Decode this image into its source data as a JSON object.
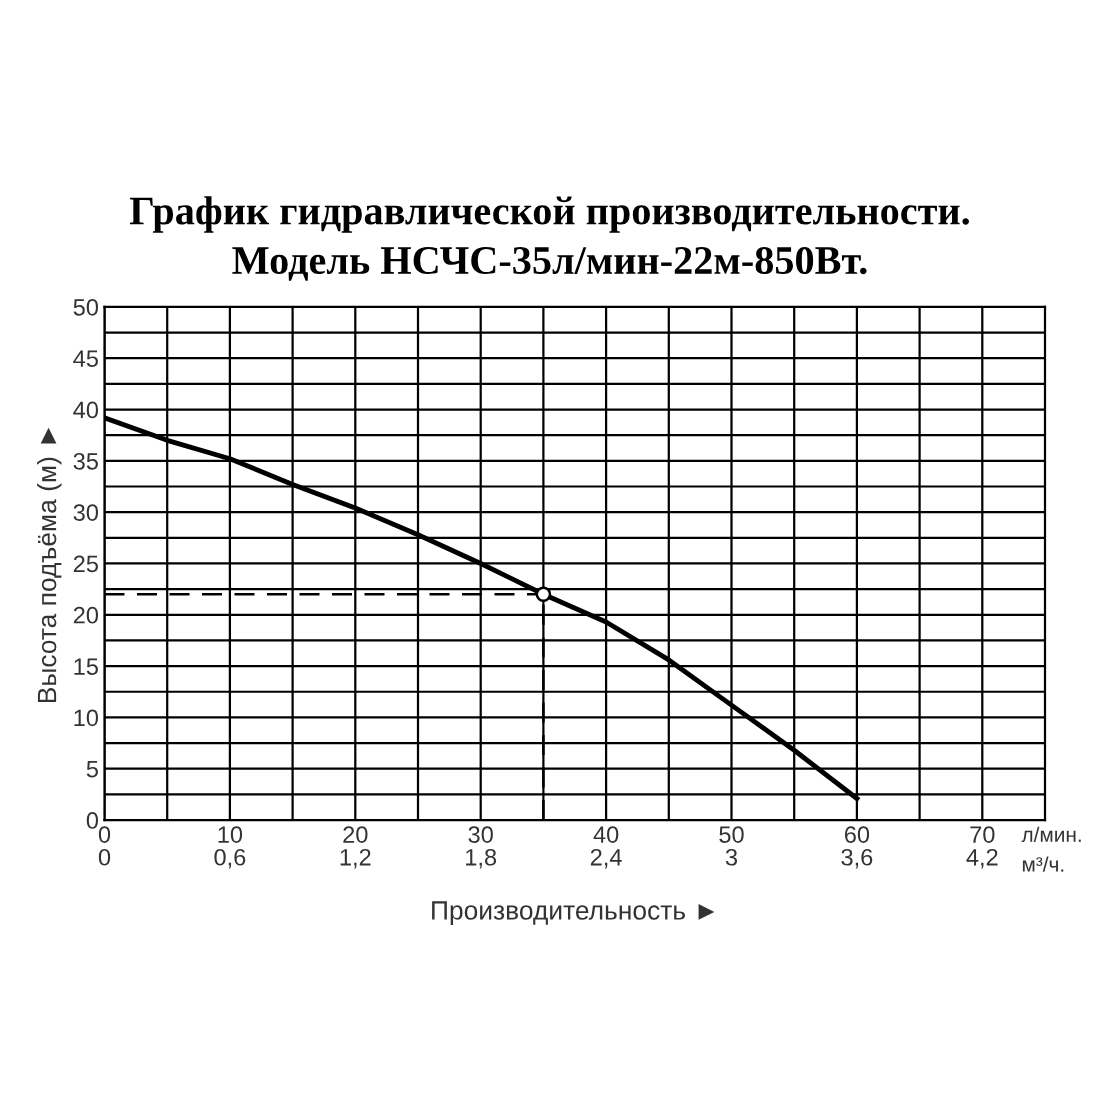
{
  "chart_data": {
    "type": "line",
    "title": "График гидравлической производительности.",
    "subtitle": "Модель НСЧС-35л/мин-22м-850Вт.",
    "xlabel": "Производительность ►",
    "ylabel": "Высота подъёма (м) ►",
    "x": [
      0,
      5,
      10,
      15,
      20,
      25,
      30,
      35,
      40,
      45,
      50,
      55,
      60
    ],
    "series": [
      {
        "color": "#000000",
        "values": [
          39.2,
          37.0,
          35.2,
          32.7,
          30.4,
          27.8,
          25.0,
          22.0,
          19.3,
          15.6,
          11.2,
          6.8,
          2.1
        ]
      },
      {
        "type": "scatter",
        "x": [
          35
        ],
        "color": "#000000",
        "values": [
          22
        ],
        "marker": "circle"
      }
    ],
    "xlim": [
      0,
      75
    ],
    "ylim": [
      0,
      50
    ],
    "xticks": [
      0,
      {
        "value": 5,
        "label": null
      },
      10,
      {
        "value": 15,
        "label": null
      },
      20,
      {
        "value": 25,
        "label": null
      },
      30,
      {
        "value": 35,
        "label": null
      },
      40,
      {
        "value": 45,
        "label": null
      },
      50,
      {
        "value": 55,
        "label": null
      },
      60,
      {
        "value": 65,
        "label": null
      },
      70
    ],
    "yticks": [
      0,
      {
        "value": 2.5,
        "label": null
      },
      5,
      {
        "value": 7.5,
        "label": null
      },
      10,
      {
        "value": 12.5,
        "label": null
      },
      15,
      {
        "value": 17.5,
        "label": null
      },
      20,
      {
        "value": 22.5,
        "label": null
      },
      25,
      {
        "value": 27.5,
        "label": null
      },
      30,
      {
        "value": 32.5,
        "label": null
      },
      35,
      {
        "value": 37.5,
        "label": null
      },
      40,
      {
        "value": 42.5,
        "label": null
      },
      45,
      {
        "value": 47.5,
        "label": null
      },
      50
    ],
    "x2lim": [
      0,
      4.5
    ],
    "x2ticks": [
      0,
      {
        "value": 0.6,
        "label": "0,6"
      },
      {
        "value": 1.2,
        "label": "1,2"
      },
      {
        "value": 1.8,
        "label": "1,8"
      },
      {
        "value": 2.4,
        "label": "2,4"
      },
      3,
      {
        "value": 3.6,
        "label": "3,6"
      },
      {
        "value": 4.2,
        "label": "4,2"
      }
    ],
    "annotations": [
      "л/мин.",
      "м³/ч."
    ],
    "ref_lines": [
      {
        "axis": "y",
        "value": 22,
        "color": "#000000",
        "line_style": "dashed"
      },
      {
        "axis": "x",
        "value": 35,
        "color": "#000000",
        "line_style": "dashed"
      }
    ],
    "grid": true,
    "marker": "none",
    "line_style": "solid"
  }
}
